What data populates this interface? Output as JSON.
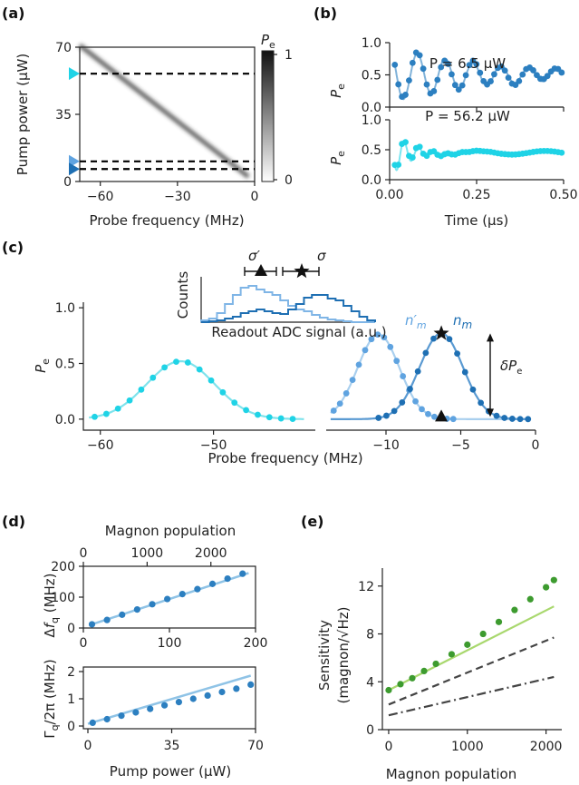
{
  "panels": {
    "a": "(a)",
    "b": "(b)",
    "c": "(c)",
    "d": "(d)",
    "e": "(e)"
  },
  "chart_data": [
    {
      "id": "a",
      "type": "heatmap",
      "xlabel": "Probe frequency (MHz)",
      "ylabel": "Pump power (µW)",
      "xlim": [
        -68,
        0
      ],
      "ylim": [
        0,
        70
      ],
      "xticks": [
        "−60",
        "−30",
        "0"
      ],
      "xtick_values": [
        -60,
        -30,
        0
      ],
      "yticks": [
        "0",
        "35",
        "70"
      ],
      "ytick_values": [
        0,
        35,
        70
      ],
      "colorbar_label": "P_e",
      "colorbar_ticks": [
        "0",
        "1"
      ],
      "ridge": [
        [
          -68,
          71
        ],
        [
          -2.4,
          2.5
        ]
      ],
      "dashed_lines": [
        56.2,
        10.5,
        6.5
      ],
      "marker_colors": [
        "#1fd3e6",
        "#5fa3e0",
        "#1e6fb3"
      ]
    },
    {
      "id": "b_top",
      "type": "line",
      "ylabel": "P_e",
      "annotation": "P = 6.5 µW",
      "ylim": [
        0,
        1
      ],
      "yticks": [
        "0.0",
        "0.5",
        "1.0"
      ],
      "xlim": [
        0,
        0.5
      ],
      "color": "#2c7fc0",
      "model": {
        "offset": 0.5,
        "amp": 0.43,
        "freq": 12.5,
        "decay": 0.3
      }
    },
    {
      "id": "b_bottom",
      "type": "line",
      "ylabel": "P_e",
      "xlabel": "Time (µs)",
      "annotation": "P = 56.2 µW",
      "ylim": [
        0,
        1
      ],
      "yticks": [
        "0.0",
        "0.5",
        "1.0"
      ],
      "xticks": [
        "0.00",
        "0.25",
        "0.50"
      ],
      "xlim": [
        0,
        0.5
      ],
      "color": "#1fd3e6",
      "model": {
        "offset": 0.45,
        "amp": 0.42,
        "freq": 24,
        "decay": 0.055
      }
    },
    {
      "id": "c",
      "type": "line",
      "xlabel": "Probe frequency (MHz)",
      "ylabel": "P_e",
      "ylim": [
        -0.05,
        1.05
      ],
      "yticks": [
        "0.0",
        "0.5",
        "1.0"
      ],
      "left_xticks": [
        "−60",
        "−50"
      ],
      "left_xtick_values": [
        -60,
        -50
      ],
      "left_xlim": [
        -61.5,
        -41
      ],
      "right_xticks": [
        "−10",
        "−5",
        "0"
      ],
      "right_xtick_values": [
        -10,
        -5,
        0
      ],
      "right_xlim": [
        -14,
        0
      ],
      "series": [
        {
          "color": "#1fd3e6",
          "line_color": "#7fe3ec",
          "center": -52.9,
          "amp": 0.52,
          "sigma": 3.0,
          "x_start": -60.5,
          "x_end": -43
        },
        {
          "label": "n′m",
          "color": "#5fa3e0",
          "line_color": "#a9cfee",
          "center": -10.5,
          "amp": 0.76,
          "sigma": 1.4,
          "x_start": -13.5,
          "x_end": -5.5
        },
        {
          "label": "nm",
          "color": "#1e6fb3",
          "line_color": "#5a9ad2",
          "center": -6.3,
          "amp": 0.77,
          "sigma": 1.45,
          "x_start": -10.5,
          "x_end": -0.5
        }
      ],
      "markers": [
        {
          "shape": "star",
          "x": -6.3,
          "y": 0.77
        },
        {
          "shape": "triangle",
          "x": -6.3,
          "y": 0.02
        }
      ],
      "arrow_label": "δP_e",
      "inset": {
        "xlabel": "Readout ADC signal (a.u.)",
        "ylabel": "Counts",
        "sigma_prime_label": "σ′",
        "sigma_label": "σ"
      }
    },
    {
      "id": "d_top",
      "type": "scatter",
      "xlabel_top": "Magnon population",
      "ylabel": "Δf_q (MHz)",
      "xlim": [
        0,
        200
      ],
      "ylim": [
        0,
        200
      ],
      "xticks": [
        "0",
        "100",
        "200"
      ],
      "yticks": [
        "0",
        "100",
        "200"
      ],
      "top_xticks": [
        "0",
        "1000",
        "2000"
      ],
      "top_max": 2700,
      "x": [
        10,
        27.5,
        45,
        62.5,
        80,
        97.5,
        115,
        132.5,
        150,
        167.5,
        185
      ],
      "y": [
        12,
        26,
        43,
        60,
        77,
        94,
        110,
        126,
        143,
        160,
        176
      ],
      "fit_color": "#8fc3e6",
      "color": "#2c7fc0"
    },
    {
      "id": "d_bottom",
      "type": "scatter",
      "xlabel": "Pump power (µW)",
      "ylabel": "Γq/2π (MHz)",
      "xlim": [
        0,
        70
      ],
      "ylim": [
        0,
        2
      ],
      "xticks": [
        "0",
        "35",
        "70"
      ],
      "yticks": [
        "0",
        "1",
        "2"
      ],
      "x": [
        2,
        8,
        14,
        20,
        26,
        32,
        38,
        44,
        50,
        56,
        62,
        68
      ],
      "y": [
        0.12,
        0.25,
        0.38,
        0.5,
        0.63,
        0.76,
        0.88,
        1.0,
        1.12,
        1.25,
        1.37,
        1.52
      ],
      "fit_x": [
        0,
        68
      ],
      "fit_y": [
        0.08,
        1.85
      ],
      "fit_color": "#8fc3e6",
      "color": "#2c7fc0"
    },
    {
      "id": "e",
      "type": "line",
      "xlabel": "Magnon population",
      "ylabel": "Sensitivity",
      "ylabel2": "(magnon/√Hz)",
      "xlim": [
        -80,
        2200
      ],
      "ylim": [
        0,
        13.5
      ],
      "xticks": [
        "0",
        "1000",
        "2000"
      ],
      "xtick_values": [
        0,
        1000,
        2000
      ],
      "yticks": [
        "0",
        "4",
        "8",
        "12"
      ],
      "ytick_values": [
        0,
        4,
        8,
        12
      ],
      "dots": {
        "color": "#3d9b2f",
        "x": [
          0,
          150,
          300,
          450,
          600,
          800,
          1000,
          1200,
          1400,
          1600,
          1800,
          2000,
          2100
        ],
        "y": [
          3.3,
          3.8,
          4.3,
          4.9,
          5.5,
          6.3,
          7.1,
          8.0,
          9.0,
          10.0,
          10.9,
          11.9,
          12.5
        ]
      },
      "lines": [
        {
          "style": "solid",
          "color": "#a9d86e",
          "x": [
            0,
            2100
          ],
          "y": [
            3.3,
            10.3
          ]
        },
        {
          "style": "dashed",
          "color": "#444444",
          "x": [
            0,
            2100
          ],
          "y": [
            2.1,
            7.7
          ]
        },
        {
          "style": "dashdot",
          "color": "#444444",
          "x": [
            0,
            2100
          ],
          "y": [
            1.2,
            4.4
          ]
        }
      ]
    }
  ]
}
